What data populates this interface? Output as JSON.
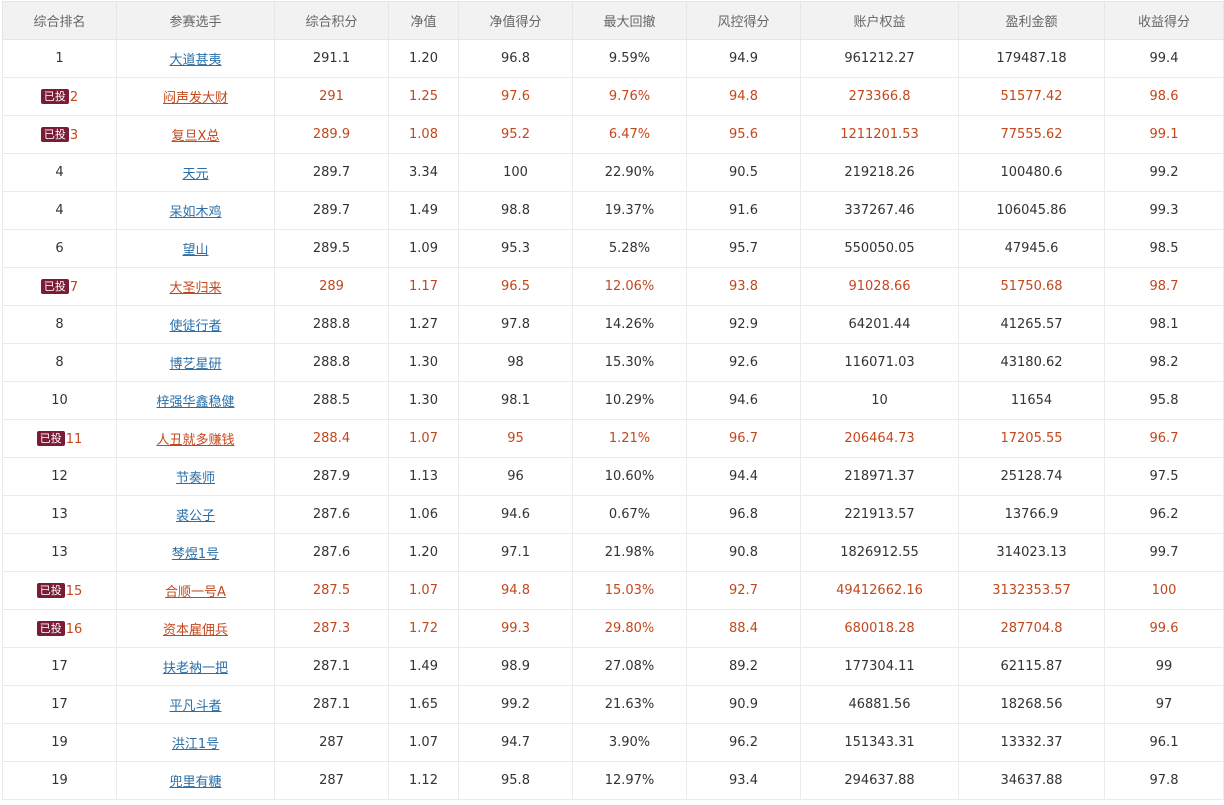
{
  "headers": [
    "综合排名",
    "参赛选手",
    "综合积分",
    "净值",
    "净值得分",
    "最大回撤",
    "风控得分",
    "账户权益",
    "盈利金额",
    "收益得分"
  ],
  "colors": {
    "header_bg": "#f2f2f2",
    "link": "#2a6fa8",
    "highlight_text": "#c4471c",
    "badge_bg": "#7a1c36"
  },
  "rows": [
    {
      "rank": "1",
      "badge": "",
      "name": "大道甚夷",
      "score": "291.1",
      "nav": "1.20",
      "nav_score": "96.8",
      "max_drawdown": "9.59%",
      "risk_score": "94.9",
      "equity": "961212.27",
      "profit": "179487.18",
      "return_score": "99.4"
    },
    {
      "rank": "2",
      "badge": "已投",
      "name": "闷声发大财",
      "score": "291",
      "nav": "1.25",
      "nav_score": "97.6",
      "max_drawdown": "9.76%",
      "risk_score": "94.8",
      "equity": "273366.8",
      "profit": "51577.42",
      "return_score": "98.6"
    },
    {
      "rank": "3",
      "badge": "已投",
      "name": "复旦X总",
      "score": "289.9",
      "nav": "1.08",
      "nav_score": "95.2",
      "max_drawdown": "6.47%",
      "risk_score": "95.6",
      "equity": "1211201.53",
      "profit": "77555.62",
      "return_score": "99.1"
    },
    {
      "rank": "4",
      "badge": "",
      "name": "天元",
      "score": "289.7",
      "nav": "3.34",
      "nav_score": "100",
      "max_drawdown": "22.90%",
      "risk_score": "90.5",
      "equity": "219218.26",
      "profit": "100480.6",
      "return_score": "99.2"
    },
    {
      "rank": "4",
      "badge": "",
      "name": "呆如木鸡",
      "score": "289.7",
      "nav": "1.49",
      "nav_score": "98.8",
      "max_drawdown": "19.37%",
      "risk_score": "91.6",
      "equity": "337267.46",
      "profit": "106045.86",
      "return_score": "99.3"
    },
    {
      "rank": "6",
      "badge": "",
      "name": "望山",
      "score": "289.5",
      "nav": "1.09",
      "nav_score": "95.3",
      "max_drawdown": "5.28%",
      "risk_score": "95.7",
      "equity": "550050.05",
      "profit": "47945.6",
      "return_score": "98.5"
    },
    {
      "rank": "7",
      "badge": "已投",
      "name": "大圣归来",
      "score": "289",
      "nav": "1.17",
      "nav_score": "96.5",
      "max_drawdown": "12.06%",
      "risk_score": "93.8",
      "equity": "91028.66",
      "profit": "51750.68",
      "return_score": "98.7"
    },
    {
      "rank": "8",
      "badge": "",
      "name": "使徒行者",
      "score": "288.8",
      "nav": "1.27",
      "nav_score": "97.8",
      "max_drawdown": "14.26%",
      "risk_score": "92.9",
      "equity": "64201.44",
      "profit": "41265.57",
      "return_score": "98.1"
    },
    {
      "rank": "8",
      "badge": "",
      "name": "博艺星研",
      "score": "288.8",
      "nav": "1.30",
      "nav_score": "98",
      "max_drawdown": "15.30%",
      "risk_score": "92.6",
      "equity": "116071.03",
      "profit": "43180.62",
      "return_score": "98.2"
    },
    {
      "rank": "10",
      "badge": "",
      "name": "梓强华鑫稳健",
      "score": "288.5",
      "nav": "1.30",
      "nav_score": "98.1",
      "max_drawdown": "10.29%",
      "risk_score": "94.6",
      "equity": "10",
      "profit": "11654",
      "return_score": "95.8"
    },
    {
      "rank": "11",
      "badge": "已投",
      "name": "人丑就多赚钱",
      "score": "288.4",
      "nav": "1.07",
      "nav_score": "95",
      "max_drawdown": "1.21%",
      "risk_score": "96.7",
      "equity": "206464.73",
      "profit": "17205.55",
      "return_score": "96.7"
    },
    {
      "rank": "12",
      "badge": "",
      "name": "节奏师",
      "score": "287.9",
      "nav": "1.13",
      "nav_score": "96",
      "max_drawdown": "10.60%",
      "risk_score": "94.4",
      "equity": "218971.37",
      "profit": "25128.74",
      "return_score": "97.5"
    },
    {
      "rank": "13",
      "badge": "",
      "name": "裘公子",
      "score": "287.6",
      "nav": "1.06",
      "nav_score": "94.6",
      "max_drawdown": "0.67%",
      "risk_score": "96.8",
      "equity": "221913.57",
      "profit": "13766.9",
      "return_score": "96.2"
    },
    {
      "rank": "13",
      "badge": "",
      "name": "棽煜1号",
      "score": "287.6",
      "nav": "1.20",
      "nav_score": "97.1",
      "max_drawdown": "21.98%",
      "risk_score": "90.8",
      "equity": "1826912.55",
      "profit": "314023.13",
      "return_score": "99.7"
    },
    {
      "rank": "15",
      "badge": "已投",
      "name": "合顺一号A",
      "score": "287.5",
      "nav": "1.07",
      "nav_score": "94.8",
      "max_drawdown": "15.03%",
      "risk_score": "92.7",
      "equity": "49412662.16",
      "profit": "3132353.57",
      "return_score": "100"
    },
    {
      "rank": "16",
      "badge": "已投",
      "name": "资本雇佣兵",
      "score": "287.3",
      "nav": "1.72",
      "nav_score": "99.3",
      "max_drawdown": "29.80%",
      "risk_score": "88.4",
      "equity": "680018.28",
      "profit": "287704.8",
      "return_score": "99.6"
    },
    {
      "rank": "17",
      "badge": "",
      "name": "扶老衲一把",
      "score": "287.1",
      "nav": "1.49",
      "nav_score": "98.9",
      "max_drawdown": "27.08%",
      "risk_score": "89.2",
      "equity": "177304.11",
      "profit": "62115.87",
      "return_score": "99"
    },
    {
      "rank": "17",
      "badge": "",
      "name": "平凡斗者",
      "score": "287.1",
      "nav": "1.65",
      "nav_score": "99.2",
      "max_drawdown": "21.63%",
      "risk_score": "90.9",
      "equity": "46881.56",
      "profit": "18268.56",
      "return_score": "97"
    },
    {
      "rank": "19",
      "badge": "",
      "name": "洪江1号",
      "score": "287",
      "nav": "1.07",
      "nav_score": "94.7",
      "max_drawdown": "3.90%",
      "risk_score": "96.2",
      "equity": "151343.31",
      "profit": "13332.37",
      "return_score": "96.1"
    },
    {
      "rank": "19",
      "badge": "",
      "name": "兜里有糖",
      "score": "287",
      "nav": "1.12",
      "nav_score": "95.8",
      "max_drawdown": "12.97%",
      "risk_score": "93.4",
      "equity": "294637.88",
      "profit": "34637.88",
      "return_score": "97.8"
    }
  ]
}
